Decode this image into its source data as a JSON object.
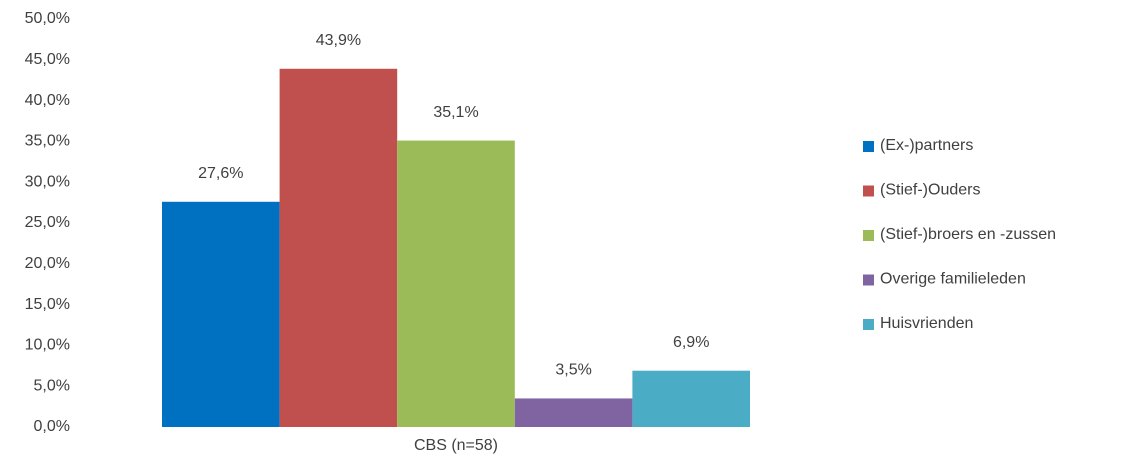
{
  "chart_data": {
    "type": "bar",
    "categories": [
      "CBS (n=58)"
    ],
    "series": [
      {
        "name": "(Ex-)partners",
        "color": "#0070c0",
        "values": [
          27.6
        ],
        "value_labels": [
          "27,6%"
        ]
      },
      {
        "name": "(Stief-)Ouders",
        "color": "#c0504d",
        "values": [
          43.9
        ],
        "value_labels": [
          "43,9%"
        ]
      },
      {
        "name": "(Stief-)broers en -zussen",
        "color": "#9bbb59",
        "values": [
          35.1
        ],
        "value_labels": [
          "35,1%"
        ]
      },
      {
        "name": "Overige familieleden",
        "color": "#8064a2",
        "values": [
          3.5
        ],
        "value_labels": [
          "3,5%"
        ]
      },
      {
        "name": "Huisvrienden",
        "color": "#4bacc6",
        "values": [
          6.9
        ],
        "value_labels": [
          "6,9%"
        ]
      }
    ],
    "ylim": [
      0,
      50
    ],
    "yticks": [
      {
        "value": 0,
        "label": "0,0%"
      },
      {
        "value": 5,
        "label": "5,0%"
      },
      {
        "value": 10,
        "label": "10,0%"
      },
      {
        "value": 15,
        "label": "15,0%"
      },
      {
        "value": 20,
        "label": "20,0%"
      },
      {
        "value": 25,
        "label": "25,0%"
      },
      {
        "value": 30,
        "label": "30,0%"
      },
      {
        "value": 35,
        "label": "35,0%"
      },
      {
        "value": 40,
        "label": "40,0%"
      },
      {
        "value": 45,
        "label": "45,0%"
      },
      {
        "value": 50,
        "label": "50,0%"
      }
    ],
    "grid": false,
    "legend": "right"
  }
}
